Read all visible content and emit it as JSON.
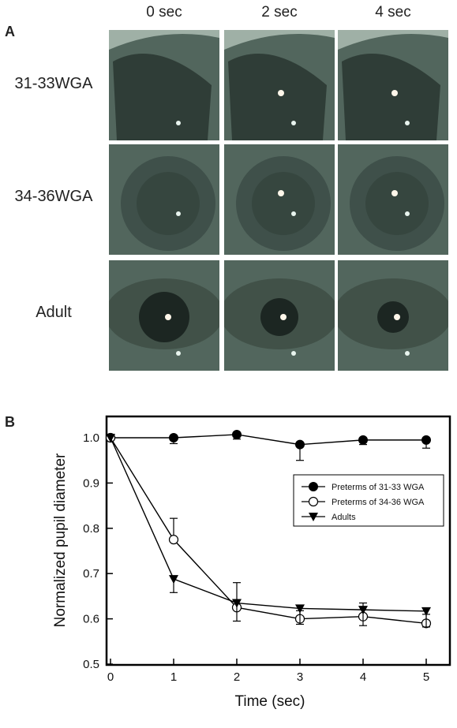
{
  "panel_a": {
    "letter": "A",
    "columns": [
      "0 sec",
      "2 sec",
      "4 sec"
    ],
    "rows": [
      "31-33WGA",
      "34-36WGA",
      "Adult"
    ]
  },
  "panel_b": {
    "letter": "B"
  },
  "chart_data": {
    "type": "line",
    "xlabel": "Time (sec)",
    "ylabel": "Normalized pupil diameter",
    "xlim": [
      0,
      5
    ],
    "ylim": [
      0.5,
      1.05
    ],
    "x_ticks": [
      "0",
      "1",
      "2",
      "3",
      "4",
      "5"
    ],
    "y_ticks": [
      "0.5",
      "0.6",
      "0.7",
      "0.8",
      "0.9",
      "1.0"
    ],
    "grid": false,
    "legend_position": "right",
    "x": [
      0,
      1,
      2,
      3,
      4,
      5
    ],
    "series": [
      {
        "name": "Preterms of 31-33 WGA",
        "marker": "filled-circle",
        "values": [
          1.0,
          1.0,
          1.007,
          0.985,
          0.995,
          0.995
        ],
        "error": [
          0,
          0.013,
          0.01,
          0.035,
          0.01,
          0.018
        ]
      },
      {
        "name": "Preterms of 34-36 WGA",
        "marker": "open-circle",
        "values": [
          1.0,
          0.775,
          0.625,
          0.6,
          0.605,
          0.59
        ],
        "error": [
          0,
          0.047,
          0.055,
          0.018,
          0.03,
          0.02
        ]
      },
      {
        "name": "Adults",
        "marker": "filled-triangle-down",
        "values": [
          1.0,
          0.688,
          0.635,
          0.623,
          0.62,
          0.617
        ],
        "error": [
          0,
          0.03,
          0.04,
          0.035,
          0.035,
          0.035
        ]
      }
    ]
  }
}
